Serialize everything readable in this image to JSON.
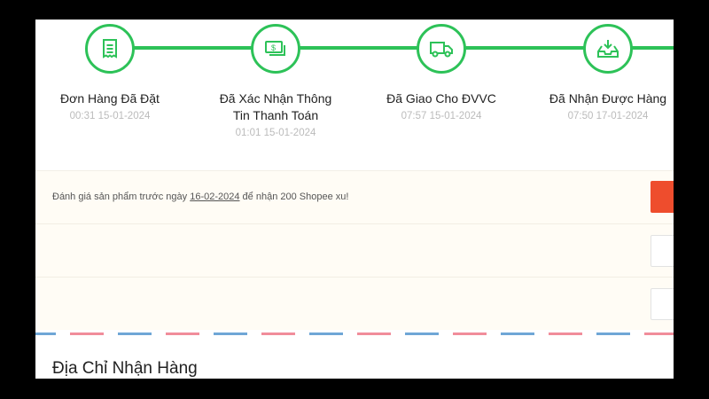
{
  "progress": {
    "accent_color": "#2dc258",
    "steps": [
      {
        "icon": "receipt-icon",
        "label": "Đơn Hàng Đã Đặt",
        "date": "00:31 15-01-2024"
      },
      {
        "icon": "money-icon",
        "label": "Đã Xác Nhận Thông Tin Thanh Toán",
        "date": "01:01 15-01-2024"
      },
      {
        "icon": "truck-icon",
        "label": "Đã Giao Cho ĐVVC",
        "date": "07:57 15-01-2024"
      },
      {
        "icon": "inbox-download-icon",
        "label": "Đã Nhận Được Hàng",
        "date": "07:50 17-01-2024"
      }
    ]
  },
  "review_note": {
    "prefix": "Đánh giá sản phẩm trước ngày ",
    "deadline": "16-02-2024",
    "suffix": " để nhận 200 Shopee xu!"
  },
  "address": {
    "heading": "Địa Chỉ Nhận Hàng"
  },
  "colors": {
    "primary_button": "#ee4d2d",
    "stripe_pink": "#f18d9b",
    "stripe_blue": "#6fa6d6"
  }
}
